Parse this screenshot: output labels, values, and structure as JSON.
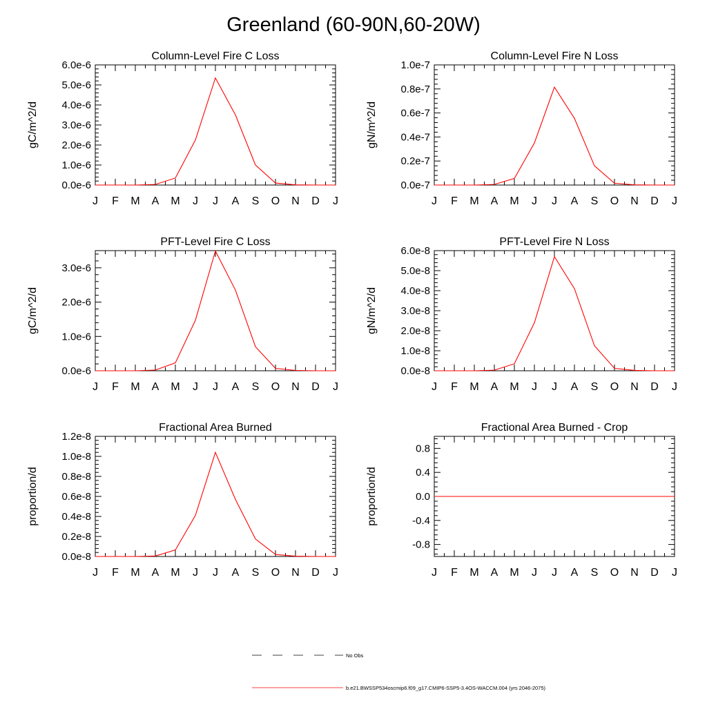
{
  "page": {
    "title": "Greenland (60-90N,60-20W)"
  },
  "colors": {
    "series": "#ff0000",
    "obs": "#000000",
    "axis": "#000000"
  },
  "legend": {
    "obs_label": "No Obs",
    "series_label": "b.e21.BWSSP534oscmip6.f09_g17.CMIP6-SSP5-3.4OS-WACCM.004 (yrs 2046-2075)"
  },
  "chart_data": [
    {
      "type": "line",
      "title": "Column-Level Fire C Loss",
      "ylabel": "gC/m^2/d",
      "categories": [
        "J",
        "F",
        "M",
        "A",
        "M",
        "J",
        "J",
        "A",
        "S",
        "O",
        "N",
        "D",
        "J"
      ],
      "ylim": [
        0,
        6e-06
      ],
      "yticks": [
        0,
        1e-06,
        2e-06,
        3e-06,
        4e-06,
        5e-06,
        6e-06
      ],
      "ytick_labels": [
        "0.0e-6",
        "1.0e-6",
        "2.0e-6",
        "3.0e-6",
        "4.0e-6",
        "5.0e-6",
        "6.0e-6"
      ],
      "series": [
        {
          "name": "b.e21.BWSSP534oscmip6.f09_g17.CMIP6-SSP5-3.4OS-WACCM.004 (yrs 2046-2075)",
          "values": [
            0,
            0,
            0,
            3e-08,
            3.5e-07,
            2.25e-06,
            5.35e-06,
            3.5e-06,
            1e-06,
            1e-07,
            1e-08,
            0,
            0
          ]
        }
      ]
    },
    {
      "type": "line",
      "title": "Column-Level Fire N Loss",
      "ylabel": "gN/m^2/d",
      "categories": [
        "J",
        "F",
        "M",
        "A",
        "M",
        "J",
        "J",
        "A",
        "S",
        "O",
        "N",
        "D",
        "J"
      ],
      "ylim": [
        0,
        1e-07
      ],
      "yticks": [
        0,
        2e-08,
        4e-08,
        6e-08,
        8e-08,
        1e-07
      ],
      "ytick_labels": [
        "0.0e-7",
        "0.2e-7",
        "0.4e-7",
        "0.6e-7",
        "0.8e-7",
        "1.0e-7"
      ],
      "series": [
        {
          "name": "b.e21.BWSSP534oscmip6.f09_g17.CMIP6-SSP5-3.4OS-WACCM.004 (yrs 2046-2075)",
          "values": [
            0,
            0,
            0,
            5e-10,
            5.5e-09,
            3.5e-08,
            8.15e-08,
            5.55e-08,
            1.6e-08,
            1.5e-09,
            2e-10,
            0,
            0
          ]
        }
      ]
    },
    {
      "type": "line",
      "title": "PFT-Level Fire C Loss",
      "ylabel": "gC/m^2/d",
      "categories": [
        "J",
        "F",
        "M",
        "A",
        "M",
        "J",
        "J",
        "A",
        "S",
        "O",
        "N",
        "D",
        "J"
      ],
      "ylim": [
        0,
        3.5e-06
      ],
      "yticks": [
        0,
        1e-06,
        2e-06,
        3e-06
      ],
      "ytick_labels": [
        "0.0e-6",
        "1.0e-6",
        "2.0e-6",
        "3.0e-6"
      ],
      "series": [
        {
          "name": "b.e21.BWSSP534oscmip6.f09_g17.CMIP6-SSP5-3.4OS-WACCM.004 (yrs 2046-2075)",
          "values": [
            0,
            0,
            0,
            2e-08,
            2.3e-07,
            1.47e-06,
            3.49e-06,
            2.35e-06,
            7e-07,
            7e-08,
            1e-08,
            0,
            0
          ]
        }
      ]
    },
    {
      "type": "line",
      "title": "PFT-Level Fire N Loss",
      "ylabel": "gN/m^2/d",
      "categories": [
        "J",
        "F",
        "M",
        "A",
        "M",
        "J",
        "J",
        "A",
        "S",
        "O",
        "N",
        "D",
        "J"
      ],
      "ylim": [
        0,
        6e-08
      ],
      "yticks": [
        0,
        1e-08,
        2e-08,
        3e-08,
        4e-08,
        5e-08,
        6e-08
      ],
      "ytick_labels": [
        "0.0e-8",
        "1.0e-8",
        "2.0e-8",
        "3.0e-8",
        "4.0e-8",
        "5.0e-8",
        "6.0e-8"
      ],
      "series": [
        {
          "name": "b.e21.BWSSP534oscmip6.f09_g17.CMIP6-SSP5-3.4OS-WACCM.004 (yrs 2046-2075)",
          "values": [
            0,
            0,
            0,
            3e-10,
            3.5e-09,
            2.4e-08,
            5.7e-08,
            4.1e-08,
            1.25e-08,
            1.2e-09,
            2e-10,
            0,
            0
          ]
        }
      ]
    },
    {
      "type": "line",
      "title": "Fractional Area Burned",
      "ylabel": "proportion/d",
      "categories": [
        "J",
        "F",
        "M",
        "A",
        "M",
        "J",
        "J",
        "A",
        "S",
        "O",
        "N",
        "D",
        "J"
      ],
      "ylim": [
        0,
        1.2e-08
      ],
      "yticks": [
        0,
        2e-09,
        4e-09,
        6e-09,
        8e-09,
        1e-08,
        1.2e-08
      ],
      "ytick_labels": [
        "0.0e-8",
        "0.2e-8",
        "0.4e-8",
        "0.6e-8",
        "0.8e-8",
        "1.0e-8",
        "1.2e-8"
      ],
      "series": [
        {
          "name": "b.e21.BWSSP534oscmip6.f09_g17.CMIP6-SSP5-3.4OS-WACCM.004 (yrs 2046-2075)",
          "values": [
            0,
            0,
            0,
            5e-11,
            6.5e-10,
            4.1e-09,
            1.04e-08,
            5.7e-09,
            1.75e-09,
            2e-10,
            3e-11,
            0,
            0
          ]
        }
      ]
    },
    {
      "type": "line",
      "title": "Fractional Area Burned - Crop",
      "ylabel": "proportion/d",
      "categories": [
        "J",
        "F",
        "M",
        "A",
        "M",
        "J",
        "J",
        "A",
        "S",
        "O",
        "N",
        "D",
        "J"
      ],
      "ylim": [
        -1.0,
        1.0
      ],
      "yticks": [
        -0.8,
        -0.4,
        0.0,
        0.4,
        0.8
      ],
      "ytick_labels": [
        "-0.8",
        "-0.4",
        "0.0",
        "0.4",
        "0.8"
      ],
      "series": [
        {
          "name": "b.e21.BWSSP534oscmip6.f09_g17.CMIP6-SSP5-3.4OS-WACCM.004 (yrs 2046-2075)",
          "values": [
            0,
            0,
            0,
            0,
            0,
            0,
            0,
            0,
            0,
            0,
            0,
            0,
            0
          ]
        }
      ]
    }
  ]
}
